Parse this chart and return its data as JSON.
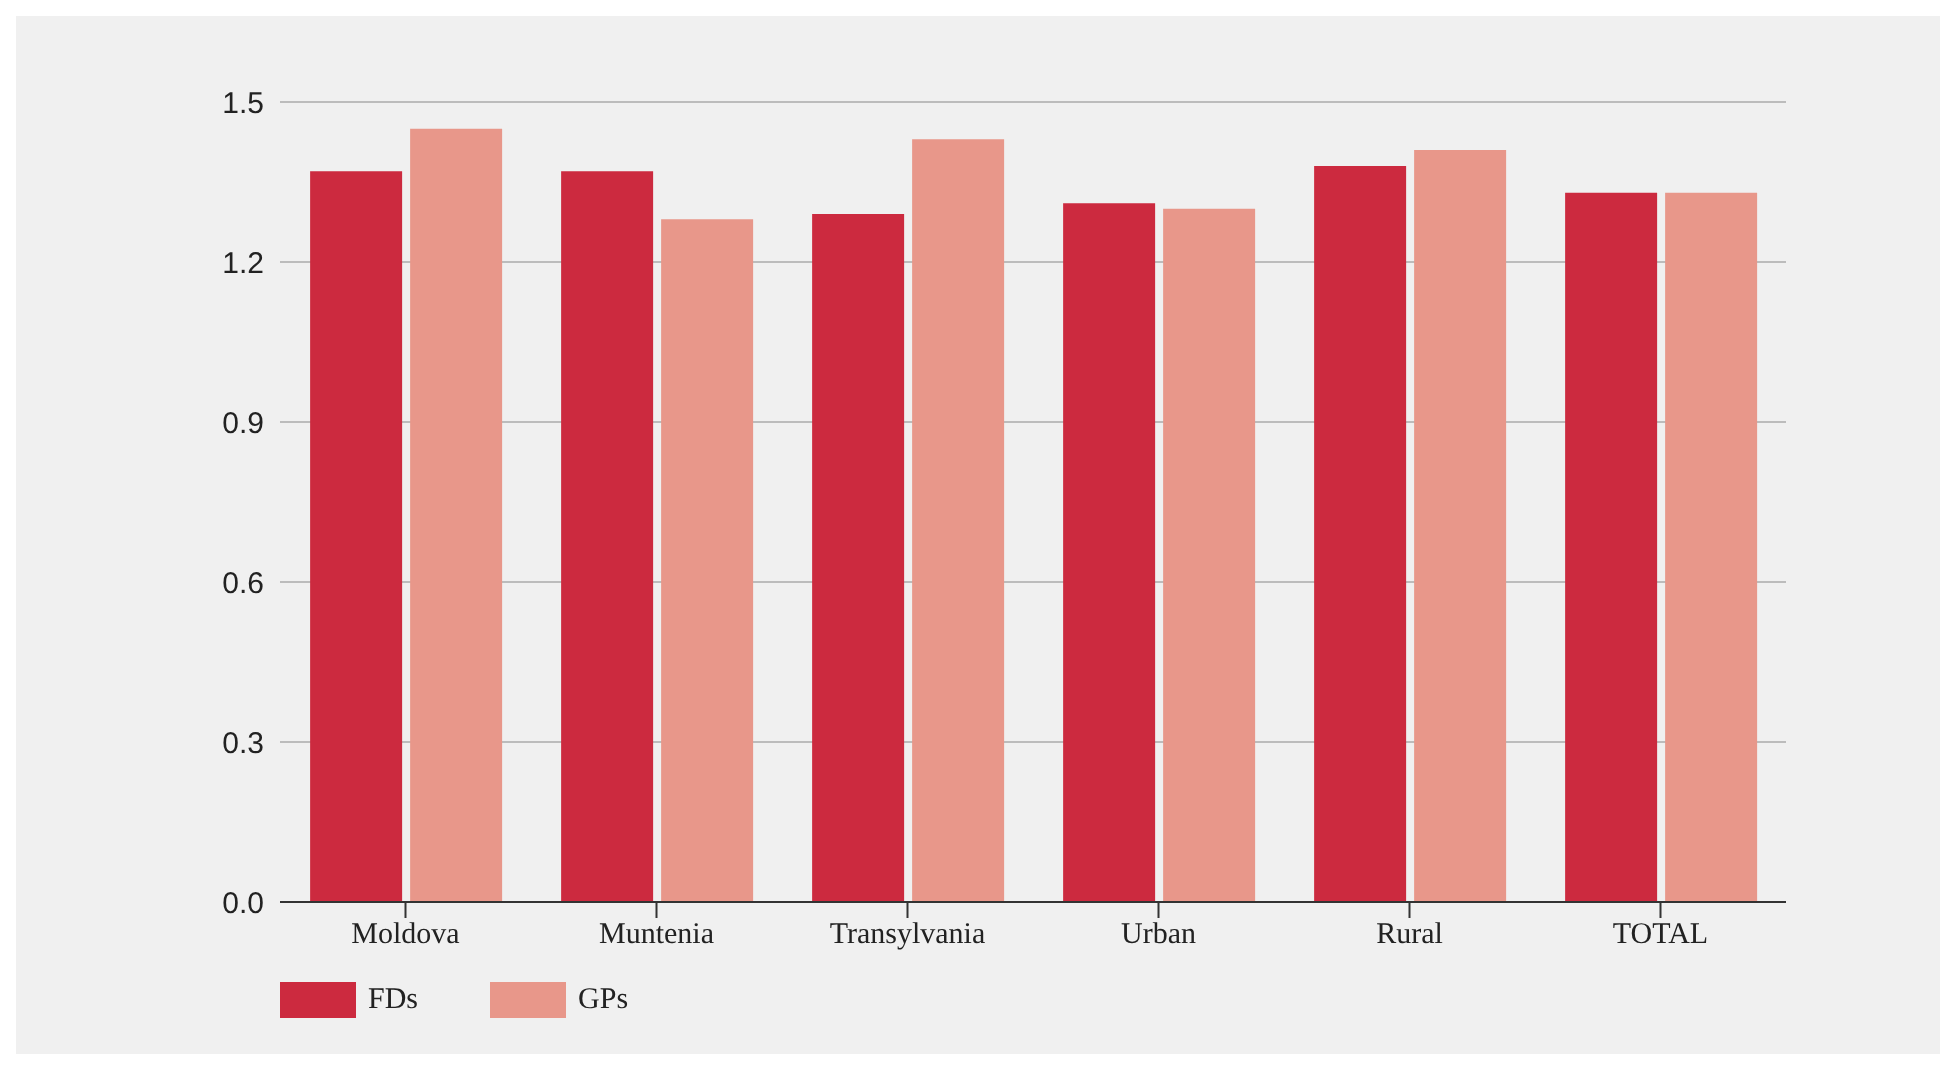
{
  "chart_data": {
    "type": "bar",
    "categories": [
      "Moldova",
      "Muntenia",
      "Transylvania",
      "Urban",
      "Rural",
      "TOTAL"
    ],
    "series": [
      {
        "name": "FDs",
        "color": "#cc2a3f",
        "values": [
          1.37,
          1.37,
          1.29,
          1.31,
          1.38,
          1.33
        ]
      },
      {
        "name": "GPs",
        "color": "#e8978a",
        "values": [
          1.45,
          1.28,
          1.43,
          1.3,
          1.41,
          1.33
        ]
      }
    ],
    "ylim": [
      0,
      1.5
    ],
    "yticks": [
      {
        "value": 0,
        "label": "0.0"
      },
      0.3,
      0.6,
      0.9,
      1.2,
      1.5
    ],
    "grid": "y",
    "legend": "bottom left"
  }
}
